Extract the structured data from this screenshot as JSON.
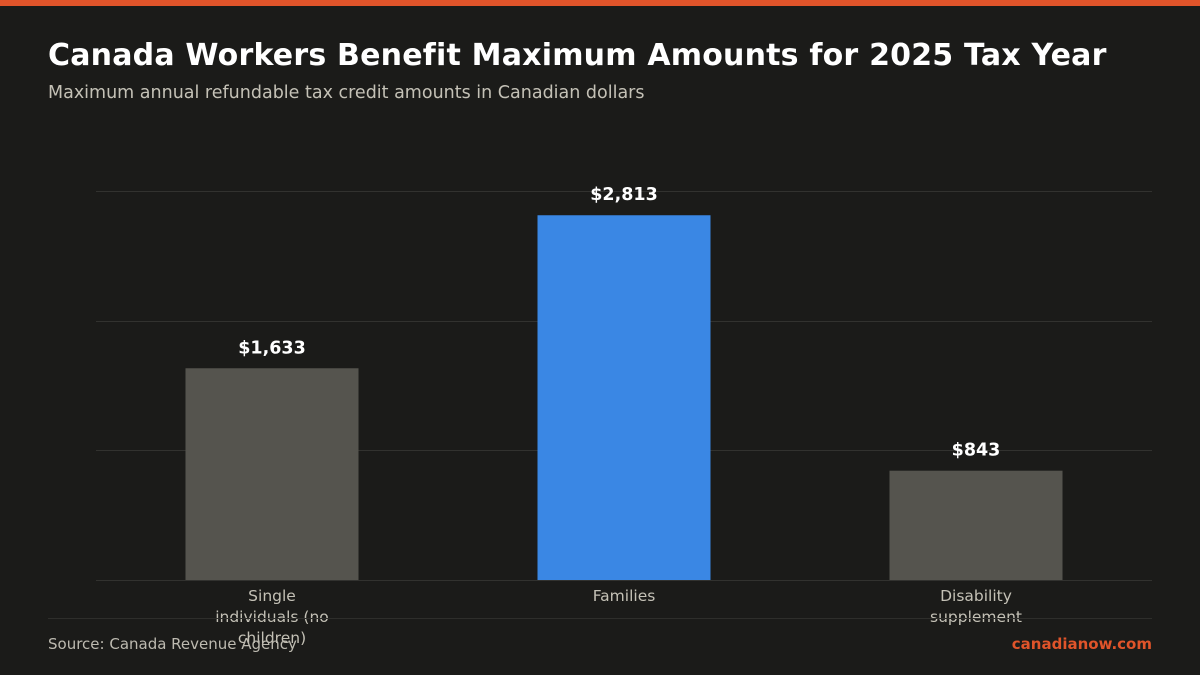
{
  "title": "Canada Workers Benefit Maximum Amounts for 2025 Tax Year",
  "subtitle": "Maximum annual refundable tax credit amounts in Canadian dollars",
  "footer": {
    "source": "Source: Canada Revenue Agency",
    "brand": "canadianow.com"
  },
  "colors": {
    "accent": "#e0542a",
    "highlight_bar": "#3a87e4",
    "neutral_bar": "#55544e",
    "background": "#1b1b19",
    "gridline": "#32322f",
    "value_label": "#ffffff",
    "category_label": "#c4c1b6"
  },
  "chart_data": {
    "type": "bar",
    "title": "Canada Workers Benefit Maximum Amounts for 2025 Tax Year",
    "subtitle": "Maximum annual refundable tax credit amounts in Canadian dollars",
    "xlabel": "",
    "ylabel": "",
    "categories": [
      "Single individuals (no children)",
      "Families",
      "Disability supplement"
    ],
    "values": [
      1633,
      2813,
      843
    ],
    "value_labels": [
      "$1,633",
      "$2,813",
      "$843"
    ],
    "highlighted_category": "Families",
    "ylim": [
      0,
      3000
    ],
    "gridlines": [
      0,
      1000,
      2000,
      3000
    ],
    "grid": true,
    "y_tick_labels_shown": false,
    "legend": "none"
  }
}
